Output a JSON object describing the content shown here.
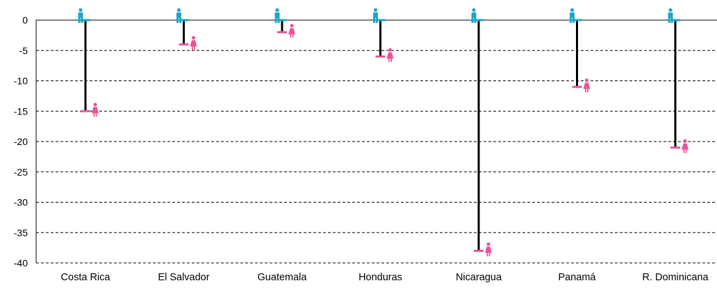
{
  "chart_data": {
    "type": "bar",
    "title": "",
    "xlabel": "",
    "ylabel": "",
    "ylim": [
      -40,
      0
    ],
    "yticks": [
      0,
      -5,
      -10,
      -15,
      -20,
      -25,
      -30,
      -35,
      -40
    ],
    "grid": true,
    "categories": [
      "Costa Rica",
      "El Salvador",
      "Guatemala",
      "Honduras",
      "Nicaragua",
      "Panamá",
      "R. Dominicana"
    ],
    "series": [
      {
        "values": [
          0,
          0,
          0,
          0,
          0,
          0,
          0
        ]
      },
      {
        "values": [
          -15,
          -4,
          -2,
          -6,
          -38,
          -11,
          -21
        ]
      }
    ],
    "colors": {
      "men": "#1aa7c7",
      "women": "#e8559a",
      "gap": "#000000",
      "grid": "#000000"
    },
    "icons": {
      "men": "man-icon",
      "women": "woman-icon"
    }
  }
}
